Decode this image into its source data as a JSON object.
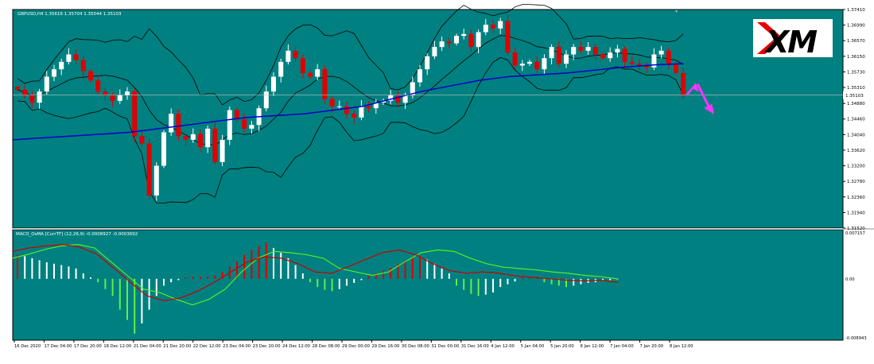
{
  "colors": {
    "background": "#008080",
    "frame": "#000000",
    "bull_candle": "#ffffff",
    "bear_candle": "#e00000",
    "bollinger": "#000000",
    "ma": "#0000cc",
    "hist_up": "#ffffff",
    "hist_down": "#e00000",
    "hist_green": "#66ee44",
    "macd_line": "#55ee22",
    "signal_line": "#cc0000",
    "arrow": "#ff33ff",
    "current_price_line": "#c0c0c0"
  },
  "chart_data": [
    {
      "type": "candlestick",
      "title": "GBPUSD,H4  1.35616 1.35704 1.35044 1.35103",
      "symbol": "GBPUSD",
      "timeframe": "H4",
      "ohlc_readout": {
        "open": 1.35616,
        "high": 1.35704,
        "low": 1.35044,
        "close": 1.35103
      },
      "current_price": 1.35103,
      "ylim": [
        1.3152,
        1.3741
      ],
      "y_ticks": [
        "1.37410",
        "1.36990",
        "1.36570",
        "1.36150",
        "1.35730",
        "1.35310",
        "1.35103",
        "1.34880",
        "1.34460",
        "1.34040",
        "1.33620",
        "1.33200",
        "1.32780",
        "1.32360",
        "1.31940",
        "1.31520"
      ],
      "series": [
        {
          "name": "Close",
          "values": [
            1.3525,
            1.351,
            1.349,
            1.352,
            1.356,
            1.358,
            1.36,
            1.362,
            1.3605,
            1.3575,
            1.355,
            1.352,
            1.351,
            1.3495,
            1.351,
            1.352,
            1.34,
            1.338,
            1.324,
            1.332,
            1.341,
            1.346,
            1.34,
            1.339,
            1.3405,
            1.337,
            1.342,
            1.333,
            1.339,
            1.347,
            1.3445,
            1.342,
            1.343,
            1.3475,
            1.352,
            1.356,
            1.36,
            1.363,
            1.361,
            1.357,
            1.356,
            1.358,
            1.35,
            1.348,
            1.348,
            1.346,
            1.345,
            1.348,
            1.3475,
            1.349,
            1.3495,
            1.351,
            1.349,
            1.351,
            1.3545,
            1.358,
            1.3615,
            1.364,
            1.3655,
            1.365,
            1.367,
            1.3675,
            1.364,
            1.368,
            1.37,
            1.369,
            1.371,
            1.3625,
            1.359,
            1.3595,
            1.36,
            1.358,
            1.361,
            1.364,
            1.3595,
            1.362,
            1.364,
            1.363,
            1.364,
            1.362,
            1.361,
            1.3625,
            1.3635,
            1.36,
            1.3595,
            1.359,
            1.3585,
            1.362,
            1.363,
            1.3595,
            1.357,
            1.351
          ]
        },
        {
          "name": "MA",
          "values": [
            1.339,
            1.3395,
            1.34,
            1.3405,
            1.341,
            1.342,
            1.343,
            1.344,
            1.345,
            1.3455,
            1.346,
            1.347,
            1.348,
            1.35,
            1.352,
            1.3535,
            1.355,
            1.356,
            1.3565,
            1.357,
            1.3578,
            1.3586,
            1.3592,
            1.3595
          ]
        }
      ],
      "annotations": [
        "projected up move",
        "projected down move"
      ]
    },
    {
      "type": "bar",
      "title": "MACD_OsMA [CurrTF] (12,26,9) -0.0008927 -0.0003692",
      "indicator": "MACD_OsMA",
      "params": "(12,26,9)",
      "readout": [
        -0.0008927,
        -0.0003692
      ],
      "ylim": [
        -0.008943,
        0.007157
      ],
      "y_ticks": [
        "0.007157",
        "0.00",
        "-0.008943"
      ],
      "series": [
        {
          "name": "OsMA",
          "values": [
            0.0035,
            0.0033,
            0.003,
            0.0027,
            0.0024,
            0.0022,
            0.002,
            0.0018,
            0.0015,
            0.0008,
            0.0002,
            -0.0005,
            -0.0015,
            -0.0025,
            -0.0045,
            -0.006,
            -0.008,
            -0.0065,
            -0.0045,
            -0.0025,
            -0.001,
            -0.0005,
            -0.0002,
            0.0002,
            0.0003,
            0.0003,
            0.0003,
            0.0005,
            0.001,
            0.0018,
            0.0025,
            0.0035,
            0.0042,
            0.0048,
            0.0052,
            0.0045,
            0.0038,
            0.003,
            0.002,
            0.0008,
            -0.0005,
            -0.0012,
            -0.0016,
            -0.0018,
            -0.0015,
            -0.001,
            -0.0006,
            -0.0002,
            0.0004,
            0.0008,
            0.0012,
            0.0016,
            0.0022,
            0.0026,
            0.003,
            0.0033,
            0.0028,
            0.0022,
            0.0015,
            0.0008,
            -0.001,
            -0.0016,
            -0.0022,
            -0.0025,
            -0.0023,
            -0.002,
            -0.0012,
            -0.0008,
            -0.0004,
            0.0002,
            0.0003,
            0.0003,
            -0.0005,
            -0.0008,
            -0.001,
            -0.0012,
            -0.001,
            -0.0008,
            -0.0006,
            -0.0005,
            -0.0003,
            -0.0002,
            -0.0001
          ]
        },
        {
          "name": "MACD",
          "values": [
            0.003,
            0.0036,
            0.0043,
            0.0048,
            0.005,
            0.0045,
            0.0025,
            0.0005,
            -0.0015,
            -0.002,
            -0.003,
            -0.0038,
            -0.003,
            -0.0015,
            0.001,
            0.003,
            0.004,
            0.0038,
            0.0035,
            0.003,
            0.0015,
            0.001,
            0.0005,
            0.001,
            0.0025,
            0.0038,
            0.0042,
            0.004,
            0.003,
            0.0022,
            0.0017,
            0.0015,
            0.0013,
            0.001,
            0.0008,
            0.0005,
            0.0003,
            0.0
          ]
        },
        {
          "name": "Signal",
          "values": [
            0.004,
            0.0045,
            0.0048,
            0.005,
            0.0046,
            0.0036,
            0.0016,
            -0.0005,
            -0.0025,
            -0.0032,
            -0.0028,
            -0.0018,
            -0.0005,
            0.001,
            0.0025,
            0.0032,
            0.003,
            0.0022,
            0.001,
            0.0008,
            0.0018,
            0.0028,
            0.0038,
            0.0042,
            0.0035,
            0.0022,
            0.0012,
            0.0008,
            0.001,
            0.0008,
            0.0004,
            0.0002,
            0.0,
            -0.0002,
            -0.0003,
            -0.0002,
            -0.0005
          ]
        }
      ]
    }
  ],
  "x_labels": [
    "16 Dec 2020",
    "17 Dec 04:00",
    "17 Dec 20:00",
    "18 Dec 12:00",
    "21 Dec 04:00",
    "21 Dec 20:00",
    "22 Dec 12:00",
    "23 Dec 04:00",
    "23 Dec 20:00",
    "24 Dec 12:00",
    "28 Dec 08:00",
    "29 Dec 00:00",
    "29 Dec 16:00",
    "30 Dec 08:00",
    "31 Dec 00:00",
    "31 Dec 16:00",
    "4 Jan 12:00",
    "5 Jan 04:00",
    "5 Jan 20:00",
    "6 Jan 12:00",
    "7 Jan 04:00",
    "7 Jan 20:00",
    "8 Jan 12:00"
  ],
  "logo": {
    "text": "XM",
    "icon": "xm-logo-icon"
  }
}
